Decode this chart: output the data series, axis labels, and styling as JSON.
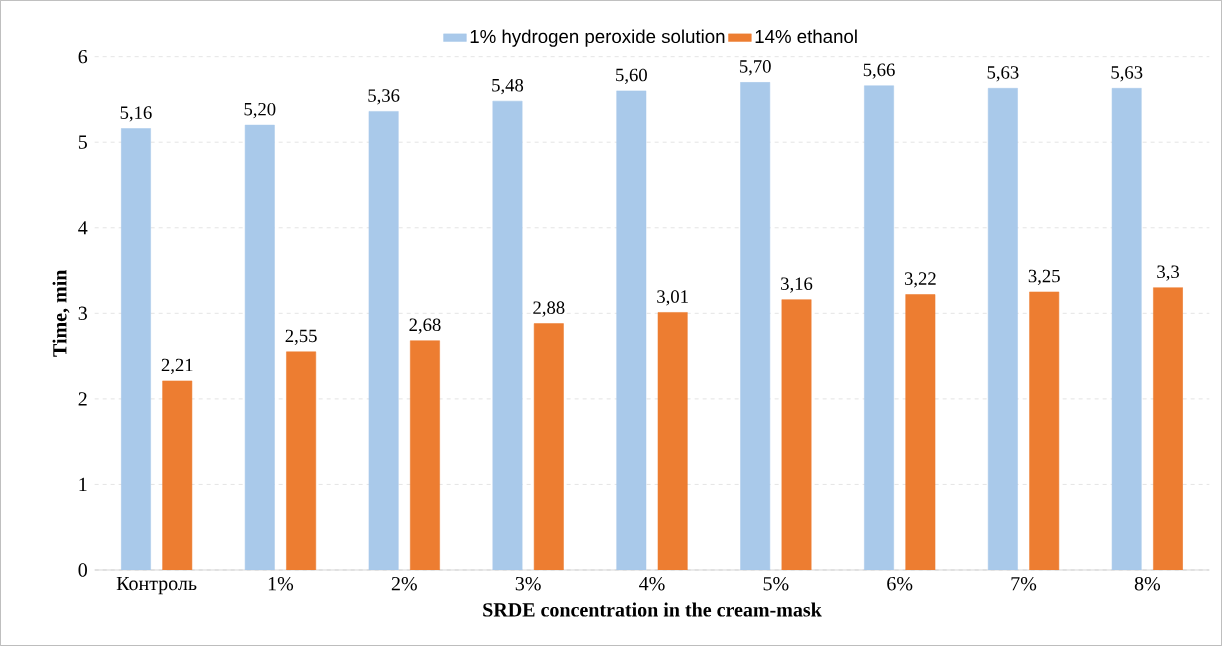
{
  "chart_data": {
    "type": "bar",
    "categories": [
      "Контроль",
      "1%",
      "2%",
      "3%",
      "4%",
      "5%",
      "6%",
      "7%",
      "8%"
    ],
    "series": [
      {
        "name": "1% hydrogen peroxide solution",
        "color": "#a9c9ea",
        "values": [
          5.16,
          5.2,
          5.36,
          5.48,
          5.6,
          5.7,
          5.66,
          5.63,
          5.63
        ],
        "value_labels": [
          "5,16",
          "5,20",
          "5,36",
          "5,48",
          "5,60",
          "5,70",
          "5,66",
          "5,63",
          "5,63"
        ]
      },
      {
        "name": "14% ethanol",
        "color": "#ed7d31",
        "values": [
          2.21,
          2.55,
          2.68,
          2.88,
          3.01,
          3.16,
          3.22,
          3.25,
          3.3
        ],
        "value_labels": [
          "2,21",
          "2,55",
          "2,68",
          "2,88",
          "3,01",
          "3,16",
          "3,22",
          "3,25",
          "3,3"
        ]
      }
    ],
    "xlabel": "SRDE concentration in the cream-mask",
    "ylabel": "Time, min",
    "ylim": [
      0,
      6
    ],
    "yticks": [
      0,
      1,
      2,
      3,
      4,
      5,
      6
    ],
    "grid": "y",
    "legend": "top"
  }
}
